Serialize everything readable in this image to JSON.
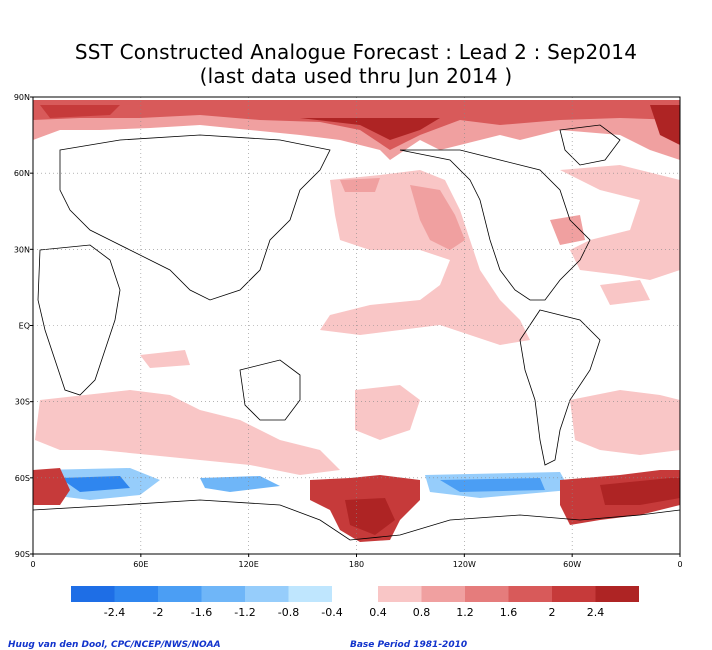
{
  "title": {
    "line1": "SST Constructed Analogue Forecast : Lead 2 : Sep2014",
    "line2": "(last data used thru Jun 2014 )"
  },
  "axes": {
    "lat_labels": [
      "90N",
      "60N",
      "30N",
      "EQ",
      "30S",
      "60S",
      "90S"
    ],
    "lon_labels": [
      "0",
      "60E",
      "120E",
      "180",
      "120W",
      "60W",
      "0"
    ],
    "lat_range": [
      -90,
      90
    ],
    "lon_range": [
      0,
      360
    ],
    "grid": "dotted"
  },
  "colorbar": {
    "negative": [
      {
        "color": "#1e6ee6"
      },
      {
        "color": "#2f86ef"
      },
      {
        "color": "#4b9ef4"
      },
      {
        "color": "#6fb6f8"
      },
      {
        "color": "#96cdfb"
      },
      {
        "color": "#bfe6fe"
      }
    ],
    "positive": [
      {
        "color": "#f9c6c6"
      },
      {
        "color": "#f0a0a0"
      },
      {
        "color": "#e57c7c"
      },
      {
        "color": "#d85a5a"
      },
      {
        "color": "#c63a3a"
      },
      {
        "color": "#ae2424"
      }
    ],
    "neg_labels": [
      "-2.4",
      "-2",
      "-1.6",
      "-1.2",
      "-0.8",
      "-0.4"
    ],
    "pos_labels": [
      "0.4",
      "0.8",
      "1.2",
      "1.6",
      "2",
      "2.4"
    ]
  },
  "credits": {
    "author": "Huug van den Dool, CPC/NCEP/NWS/NOAA",
    "base_period": "Base Period 1981-2010"
  }
}
